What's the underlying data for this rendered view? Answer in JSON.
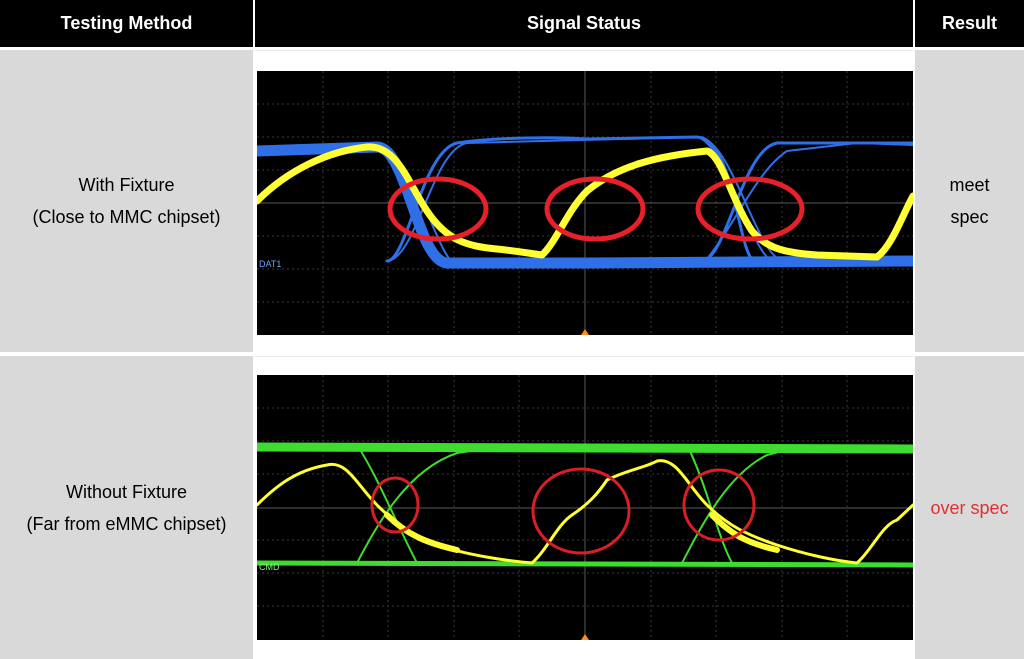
{
  "table": {
    "headers": {
      "method": "Testing Method",
      "signal": "Signal Status",
      "result": "Result"
    },
    "rows": [
      {
        "method_line1": "With Fixture",
        "method_line2": "(Close to MMC chipset)",
        "result_line1": "meet",
        "result_line2": "spec",
        "result_color": "#000000",
        "scope": {
          "channel_label": "DAT1",
          "trace_colors": {
            "clock": "#ffff33",
            "data": "#2f6fe8"
          },
          "highlight_color": "#e8202a"
        }
      },
      {
        "method_line1": "Without Fixture",
        "method_line2": "(Far from eMMC chipset)",
        "result_line1": "over spec",
        "result_line2": "",
        "result_color": "#e03030",
        "scope": {
          "channel_label": "CMD",
          "trace_colors": {
            "clock": "#ffff33",
            "data": "#3ddc2f"
          },
          "highlight_color": "#d81e26"
        }
      }
    ]
  }
}
